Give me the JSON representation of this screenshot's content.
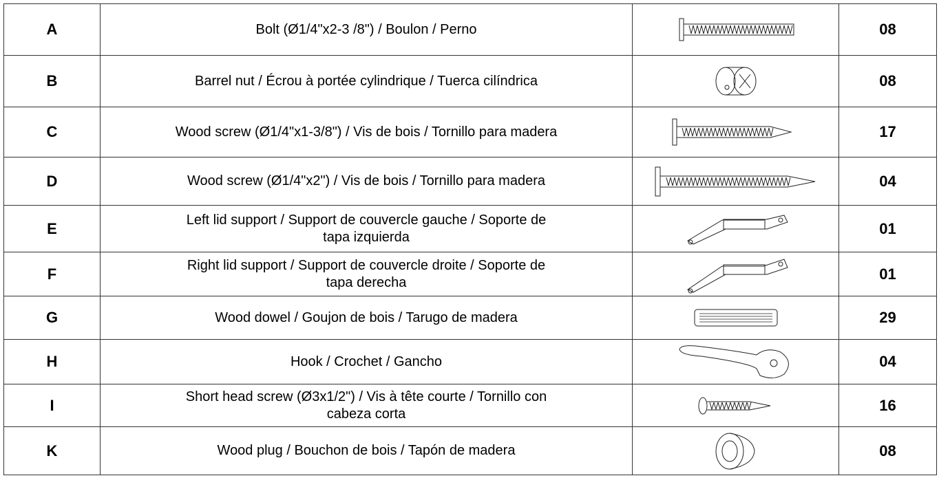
{
  "table": {
    "rows": [
      [
        "A",
        [
          "Bolt (Ø1/4\"x2-3 /8\") / Boulon / Perno"
        ],
        "08"
      ],
      [
        "B",
        [
          "Barrel nut / Écrou à portée cylindrique / Tuerca cilíndrica"
        ],
        "08"
      ],
      [
        "C",
        [
          "Wood screw (Ø1/4\"x1-3/8\") / Vis de bois / Tornillo para madera"
        ],
        "17"
      ],
      [
        "D",
        [
          "Wood screw (Ø1/4\"x2\") / Vis de bois / Tornillo para madera"
        ],
        "04"
      ],
      [
        "E",
        [
          "Left lid support / Support de couvercle gauche / Soporte de",
          "tapa izquierda"
        ],
        "01"
      ],
      [
        "F",
        [
          "Right lid support / Support de couvercle droite / Soporte de",
          "tapa derecha"
        ],
        "01"
      ],
      [
        "G",
        [
          "Wood dowel / Goujon de bois / Tarugo de madera"
        ],
        "29"
      ],
      [
        "H",
        [
          "Hook / Crochet / Gancho"
        ],
        "04"
      ],
      [
        "I",
        [
          "Short head screw (Ø3x1/2\") / Vis à tête courte / Tornillo con",
          "cabeza corta"
        ],
        "16"
      ],
      [
        "K",
        [
          "Wood plug / Bouchon de bois / Tapón de madera"
        ],
        "08"
      ]
    ]
  }
}
